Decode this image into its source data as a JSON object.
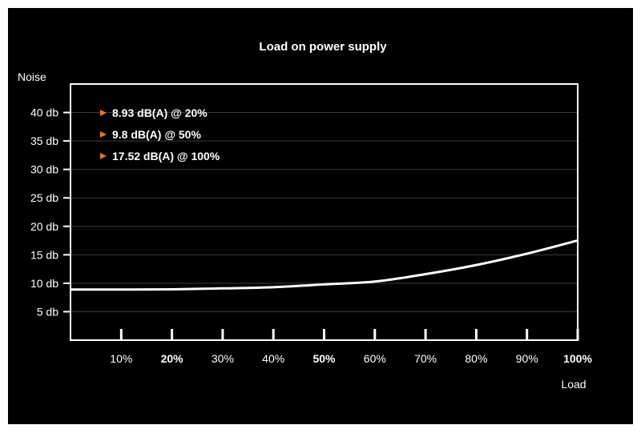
{
  "chart_data": {
    "type": "line",
    "title": "Load on power supply",
    "xlabel": "Load",
    "ylabel": "Noise",
    "xlim": [
      0,
      100
    ],
    "ylim": [
      0,
      45
    ],
    "x_ticks": [
      {
        "value": 10,
        "label": "10%",
        "bold": false
      },
      {
        "value": 20,
        "label": "20%",
        "bold": true
      },
      {
        "value": 30,
        "label": "30%",
        "bold": false
      },
      {
        "value": 40,
        "label": "40%",
        "bold": false
      },
      {
        "value": 50,
        "label": "50%",
        "bold": true
      },
      {
        "value": 60,
        "label": "60%",
        "bold": false
      },
      {
        "value": 70,
        "label": "70%",
        "bold": false
      },
      {
        "value": 80,
        "label": "80%",
        "bold": false
      },
      {
        "value": 90,
        "label": "90%",
        "bold": false
      },
      {
        "value": 100,
        "label": "100%",
        "bold": true
      }
    ],
    "y_ticks": [
      {
        "value": 5,
        "label": "5 db"
      },
      {
        "value": 10,
        "label": "10 db"
      },
      {
        "value": 15,
        "label": "15 db"
      },
      {
        "value": 20,
        "label": "20 db"
      },
      {
        "value": 25,
        "label": "25 db"
      },
      {
        "value": 30,
        "label": "30 db"
      },
      {
        "value": 35,
        "label": "35 db"
      },
      {
        "value": 40,
        "label": "40 db"
      }
    ],
    "grid": true,
    "series": [
      {
        "x": [
          0,
          10,
          20,
          30,
          40,
          50,
          60,
          70,
          80,
          90,
          100
        ],
        "y": [
          8.9,
          8.9,
          8.93,
          9.1,
          9.3,
          9.8,
          10.3,
          11.6,
          13.2,
          15.2,
          17.52
        ]
      }
    ],
    "annotations": [
      "8.93 dB(A) @ 20%",
      "9.8 dB(A) @ 50%",
      "17.52 dB(A) @ 100%"
    ],
    "colors": {
      "background": "#000000",
      "line": "#ffffff",
      "grid": "#3a3a3a",
      "marker": "#e8732a"
    }
  }
}
